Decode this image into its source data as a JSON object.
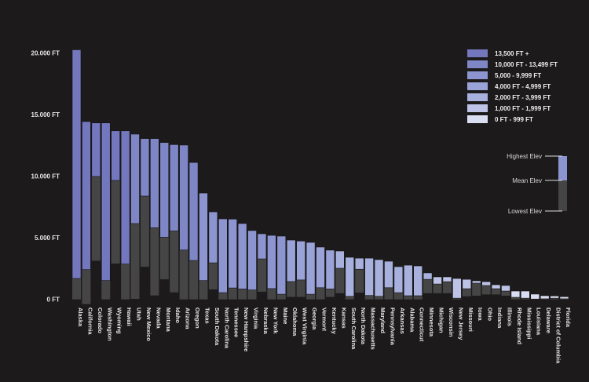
{
  "chart_data": {
    "type": "bar",
    "title": "",
    "xlabel": "",
    "ylabel": "",
    "ylim": [
      0,
      20000
    ],
    "y_ticks": [
      {
        "value": 0,
        "label": "0 FT"
      },
      {
        "value": 5000,
        "label": "5.000 FT"
      },
      {
        "value": 10000,
        "label": "10.000 FT"
      },
      {
        "value": 15000,
        "label": "15.000 FT"
      },
      {
        "value": 20000,
        "label": "20.000 FT"
      }
    ],
    "categories": [
      "Alaska",
      "California",
      "Colorado",
      "Washington",
      "Wyoming",
      "Hawaii",
      "Utah",
      "New Mexico",
      "Nevada",
      "Montana",
      "Idaho",
      "Arizona",
      "Oregon",
      "Texas",
      "South Dakota",
      "North Carolina",
      "Tennessee",
      "New Hampshire",
      "Virginia",
      "Nebraska",
      "New York",
      "Maine",
      "Oklahoma",
      "West Virginia",
      "Georgia",
      "Vermont",
      "Kentucky",
      "Kansas",
      "South Carolina",
      "North Dakota",
      "Massachusetts",
      "Maryland",
      "Pennsylvania",
      "Arkansas",
      "Alabama",
      "Connecticut",
      "Minnesota",
      "Michigan",
      "Wisconsin",
      "New Jersey",
      "Missouri",
      "Iowa",
      "Ohio",
      "Indiana",
      "Illinois",
      "Rhode Island",
      "Mississippi",
      "Louisiana",
      "Delaware",
      "District of Columbia",
      "Florida"
    ],
    "series": [
      {
        "name": "Highest Elev",
        "values": [
          20270,
          14440,
          14330,
          14330,
          13690,
          13690,
          13420,
          13060,
          13060,
          12740,
          12570,
          12530,
          11120,
          8640,
          7110,
          6540,
          6520,
          6160,
          5590,
          5330,
          5200,
          5140,
          4820,
          4740,
          4630,
          4250,
          4000,
          3930,
          3420,
          3350,
          3350,
          3230,
          3100,
          2660,
          2780,
          2720,
          2150,
          1830,
          1830,
          1700,
          1630,
          1510,
          1440,
          1190,
          1130,
          680,
          680,
          430,
          300,
          280,
          220
        ]
      },
      {
        "name": "Mean Elev",
        "values": [
          1700,
          2420,
          9980,
          1530,
          9660,
          2870,
          6160,
          8390,
          5820,
          5050,
          5560,
          4010,
          3160,
          1530,
          2970,
          550,
          930,
          850,
          770,
          3290,
          880,
          420,
          1450,
          1580,
          420,
          950,
          850,
          2530,
          250,
          2450,
          320,
          250,
          950,
          550,
          300,
          300,
          1630,
          1250,
          1440,
          100,
          870,
          1320,
          1130,
          870,
          680,
          170,
          100,
          30,
          50,
          100,
          50
        ]
      },
      {
        "name": "Lowest Elev",
        "values": [
          0,
          -380,
          3140,
          0,
          2910,
          0,
          40,
          2650,
          320,
          1630,
          570,
          0,
          0,
          0,
          810,
          0,
          0,
          0,
          0,
          620,
          0,
          0,
          200,
          200,
          0,
          0,
          200,
          500,
          0,
          550,
          0,
          0,
          0,
          0,
          0,
          0,
          500,
          500,
          500,
          0,
          250,
          300,
          400,
          400,
          300,
          0,
          0,
          0,
          0,
          0,
          0
        ]
      }
    ],
    "legend": {
      "placement": "top-right",
      "classes": [
        {
          "label": "13,500 FT +",
          "min": 13500,
          "color": "#7377bd"
        },
        {
          "label": "10,000 FT - 13,499 FT",
          "min": 10000,
          "color": "#7f86c6"
        },
        {
          "label": "5,000 - 9,999 FT",
          "min": 5000,
          "color": "#8c95cf"
        },
        {
          "label": "4,000 FT - 4,999 FT",
          "min": 4000,
          "color": "#99a3d7"
        },
        {
          "label": "2,000 FT - 3,999 FT",
          "min": 2000,
          "color": "#a8b1de"
        },
        {
          "label": "1,000 FT - 1,999 FT",
          "min": 1000,
          "color": "#bcc3e7"
        },
        {
          "label": "0 FT - 999 FT",
          "min": 0,
          "color": "#dadef2"
        }
      ]
    },
    "key": {
      "highest": "Highest Elev",
      "mean": "Mean Elev",
      "lowest": "Lowest Elev"
    },
    "colors": {
      "background": "#1c1a1a",
      "lower": "#454545"
    }
  }
}
